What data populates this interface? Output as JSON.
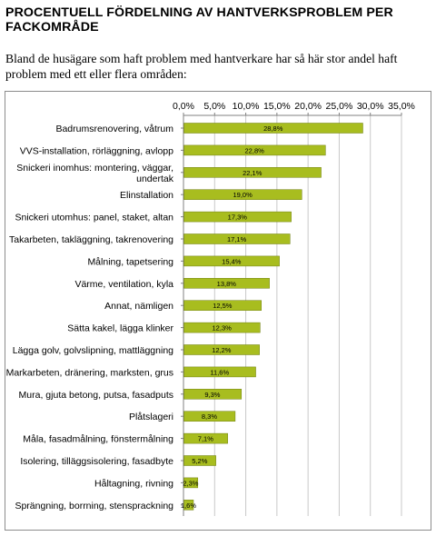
{
  "page": {
    "title": "PROCENTUELL FÖRDELNING AV HANTVERKSPROBLEM PER FACKOMRÅDE",
    "subtitle": "Bland de husägare som haft problem med hantverkare har så här stor andel haft problem med ett eller flera områden:"
  },
  "colors": {
    "bar": "#a8bd1f",
    "bar_edge": "#6f7f10",
    "grid": "#c8c8c8",
    "frame": "#8c8c8c"
  },
  "chart_data": {
    "type": "bar",
    "orientation": "horizontal",
    "title": "",
    "xlabel": "",
    "ylabel": "",
    "xlim": [
      0,
      35
    ],
    "ticks": [
      0,
      5,
      10,
      15,
      20,
      25,
      30,
      35
    ],
    "tick_labels": [
      "0,0%",
      "5,0%",
      "10,0%",
      "15,0%",
      "20,0%",
      "25,0%",
      "30,0%",
      "35,0%"
    ],
    "tick_position": "top",
    "grid": true,
    "legend": "none",
    "categories": [
      [
        "Badrumsrenovering, våtrum"
      ],
      [
        "VVS-installation, rörläggning, avlopp"
      ],
      [
        "Snickeri inomhus: montering, väggar,",
        "undertak"
      ],
      [
        "Elinstallation"
      ],
      [
        "Snickeri utomhus: panel, staket, altan"
      ],
      [
        "Takarbeten, takläggning, takrenovering"
      ],
      [
        "Målning, tapetsering"
      ],
      [
        "Värme, ventilation, kyla"
      ],
      [
        "Annat, nämligen"
      ],
      [
        "Sätta kakel, lägga klinker"
      ],
      [
        "Lägga golv, golvslipning, mattläggning"
      ],
      [
        "Markarbeten, dränering, marksten, grus"
      ],
      [
        "Mura, gjuta betong, putsa, fasadputs"
      ],
      [
        "Plåtslageri"
      ],
      [
        "Måla, fasadmålning, fönstermålning"
      ],
      [
        "Isolering, tilläggsisolering, fasadbyte"
      ],
      [
        "Håltagning, rivning"
      ],
      [
        "Sprängning, borrning, stensprackning"
      ]
    ],
    "values": [
      28.8,
      22.8,
      22.1,
      19.0,
      17.3,
      17.1,
      15.4,
      13.8,
      12.5,
      12.3,
      12.2,
      11.6,
      9.3,
      8.3,
      7.1,
      5.2,
      2.3,
      1.6
    ],
    "value_labels": [
      "28,8%",
      "22,8%",
      "22,1%",
      "19,0%",
      "17,3%",
      "17,1%",
      "15,4%",
      "13,8%",
      "12,5%",
      "12,3%",
      "12,2%",
      "11,6%",
      "9,3%",
      "8,3%",
      "7,1%",
      "5,2%",
      "2,3%",
      "1,6%"
    ]
  }
}
